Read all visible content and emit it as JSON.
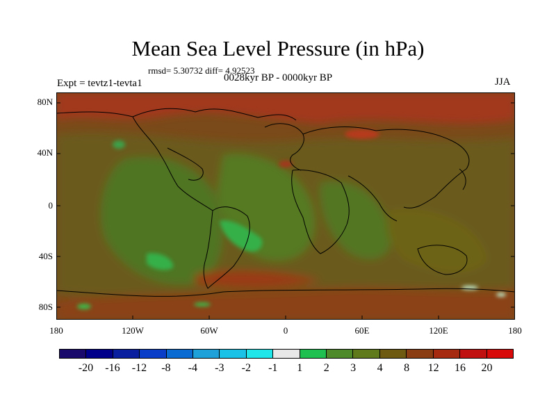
{
  "map": {
    "title": "Mean Sea Level Pressure (in hPa)",
    "stats": "rmsd= 5.30732 diff= 4.92523",
    "experiment": "Expt = tevtz1-tevta1",
    "period": "0028kyr BP - 0000kyr BP",
    "season": "JJA",
    "lat_labels": [
      "80N",
      "40N",
      "0",
      "40S",
      "80S"
    ],
    "lon_labels": [
      "180",
      "120W",
      "60W",
      "0",
      "60E",
      "120E",
      "180"
    ],
    "colors": {
      "background_field": "#7a4a1a",
      "field_mid": "#6b5a1a",
      "field_green": "#4e7a22",
      "field_light_green": "#3dcc4a",
      "field_red": "#b53a1a"
    }
  },
  "colorbar": {
    "labels": [
      "-20",
      "-16",
      "-12",
      "-8",
      "-4",
      "-3",
      "-2",
      "-1",
      "1",
      "2",
      "3",
      "4",
      "8",
      "12",
      "16",
      "20"
    ],
    "colors": [
      "#1a0a6b",
      "#00008b",
      "#0a1fa0",
      "#0a3ec8",
      "#0a6bd2",
      "#1ea0d8",
      "#19c2e6",
      "#20e6ea",
      "#e8e8e8",
      "#1ec050",
      "#4f8a2a",
      "#5f7a1a",
      "#6f5a12",
      "#8a3c12",
      "#a52a10",
      "#c01010",
      "#d80a0a"
    ]
  }
}
